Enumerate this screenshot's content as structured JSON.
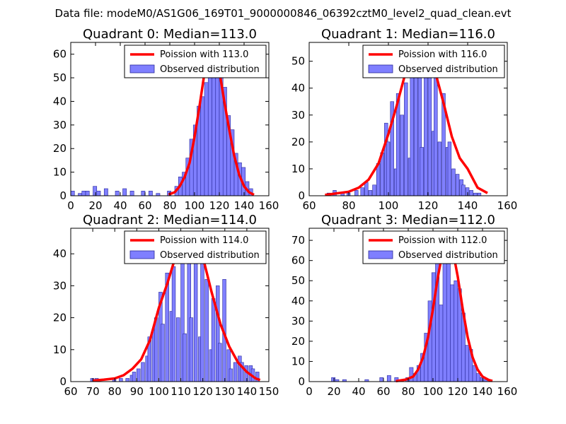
{
  "figure_title": "Data file: modeM0/AS1G06_169T01_9000000846_06392cztM0_level2_quad_clean.evt",
  "colors": {
    "hist_fill": "#7f7fff",
    "hist_edge": "#2a2a9a",
    "poisson_line": "#ff0000",
    "axes": "#000000"
  },
  "chart_data": [
    {
      "type": "bar",
      "title": "Quadrant 0: Median=113.0",
      "median": 113.0,
      "xlim": [
        0,
        160
      ],
      "ylim": [
        0,
        65
      ],
      "xticks": [
        "0",
        "20",
        "40",
        "60",
        "80",
        "100",
        "120",
        "140",
        "160"
      ],
      "yticks": [
        "0",
        "10",
        "20",
        "30",
        "40",
        "50",
        "60"
      ],
      "legend": {
        "location": "top-right",
        "entries": [
          "Poission with 113.0",
          "Observed distribution"
        ]
      },
      "histogram": {
        "bin_width": 3.0,
        "bin_starts": [
          0,
          6,
          9,
          12,
          18,
          21,
          27,
          36,
          42,
          48,
          57,
          63,
          69,
          78,
          84,
          87,
          90,
          93,
          96,
          99,
          102,
          105,
          108,
          111,
          114,
          117,
          120,
          123,
          126,
          129,
          132,
          135,
          138,
          141,
          144
        ],
        "counts": [
          2,
          1,
          2,
          2,
          4,
          2,
          3,
          2,
          3,
          2,
          2,
          2,
          1,
          2,
          4,
          8,
          10,
          16,
          24,
          30,
          38,
          42,
          48,
          60,
          55,
          58,
          50,
          46,
          34,
          28,
          18,
          14,
          12,
          6,
          3
        ]
      },
      "poisson_curve": {
        "x": [
          79,
          84,
          88,
          92,
          96,
          100,
          104,
          108,
          110,
          112,
          114,
          116,
          118,
          120,
          124,
          128,
          132,
          136,
          140,
          144,
          148
        ],
        "y": [
          0.5,
          1.5,
          4,
          8,
          14,
          25,
          38,
          52,
          57,
          61,
          62,
          61,
          58,
          53,
          40,
          28,
          17,
          9,
          4,
          1.5,
          0.4
        ]
      }
    },
    {
      "type": "bar",
      "title": "Quadrant 1: Median=116.0",
      "median": 116.0,
      "xlim": [
        60,
        160
      ],
      "ylim": [
        0,
        57
      ],
      "xticks": [
        "60",
        "80",
        "100",
        "120",
        "140",
        "160"
      ],
      "yticks": [
        "0",
        "10",
        "20",
        "30",
        "40",
        "50"
      ],
      "legend": {
        "location": "top-right",
        "entries": [
          "Poission with 116.0",
          "Observed distribution"
        ]
      },
      "histogram": {
        "bin_width": 1.72,
        "bin_starts": [
          69,
          72,
          76,
          79,
          83,
          86,
          88,
          90,
          92,
          94,
          96,
          98,
          99,
          101,
          103,
          104,
          106,
          108,
          110,
          111,
          113,
          115,
          116,
          118,
          120,
          122,
          123,
          125,
          127,
          129,
          130,
          132,
          134,
          136,
          137,
          139,
          141,
          143,
          145
        ],
        "counts": [
          1,
          2,
          1,
          1,
          2,
          3,
          5,
          2,
          4,
          12,
          16,
          27,
          20,
          35,
          10,
          38,
          30,
          42,
          14,
          46,
          48,
          55,
          18,
          50,
          46,
          24,
          44,
          20,
          38,
          18,
          20,
          10,
          8,
          6,
          4,
          3,
          2,
          1,
          1
        ]
      },
      "poisson_curve": {
        "x": [
          68,
          75,
          80,
          85,
          90,
          95,
          100,
          104,
          108,
          112,
          116,
          120,
          124,
          128,
          132,
          136,
          140,
          145,
          150
        ],
        "y": [
          0.3,
          1,
          1.5,
          3,
          6,
          12,
          23,
          33,
          44,
          52,
          55,
          52,
          45,
          34,
          22,
          14,
          10,
          3,
          1
        ]
      }
    },
    {
      "type": "bar",
      "title": "Quadrant 2: Median=114.0",
      "median": 114.0,
      "xlim": [
        60,
        150
      ],
      "ylim": [
        0,
        48
      ],
      "xticks": [
        "60",
        "70",
        "80",
        "90",
        "100",
        "110",
        "120",
        "130",
        "140",
        "150"
      ],
      "yticks": [
        "0",
        "10",
        "20",
        "30",
        "40"
      ],
      "legend": {
        "location": "top-right",
        "entries": [
          "Poission with 114.0",
          "Observed distribution"
        ]
      },
      "histogram": {
        "bin_width": 1.55,
        "bin_starts": [
          69,
          71,
          79,
          82,
          85,
          87,
          88,
          90,
          92,
          94,
          95,
          97,
          98,
          100,
          101,
          103,
          105,
          106,
          108,
          110,
          111,
          113,
          114,
          116,
          118,
          119,
          121,
          123,
          124,
          126,
          127,
          129,
          131,
          132,
          134,
          136,
          137,
          139,
          141,
          142,
          144
        ],
        "counts": [
          1,
          1,
          1,
          1,
          1,
          2,
          3,
          4,
          6,
          8,
          14,
          16,
          20,
          28,
          18,
          34,
          22,
          36,
          20,
          38,
          15,
          42,
          20,
          44,
          14,
          42,
          32,
          10,
          26,
          30,
          12,
          32,
          10,
          4,
          6,
          8,
          6,
          5,
          5,
          4,
          3
        ]
      },
      "poisson_curve": {
        "x": [
          70,
          75,
          80,
          84,
          88,
          92,
          96,
          100,
          104,
          108,
          112,
          114,
          116,
          120,
          124,
          128,
          132,
          136,
          140,
          144,
          146
        ],
        "y": [
          0.3,
          0.6,
          1,
          2,
          4,
          7,
          13,
          23,
          31,
          40,
          45,
          46,
          45,
          39,
          28,
          18,
          11,
          6,
          3,
          1,
          0.5
        ]
      }
    },
    {
      "type": "bar",
      "title": "Quadrant 3: Median=112.0",
      "median": 112.0,
      "xlim": [
        0,
        160
      ],
      "ylim": [
        0,
        76
      ],
      "xticks": [
        "0",
        "20",
        "40",
        "60",
        "80",
        "100",
        "120",
        "140",
        "160"
      ],
      "yticks": [
        "0",
        "10",
        "20",
        "30",
        "40",
        "50",
        "60",
        "70"
      ],
      "legend": {
        "location": "top-right",
        "entries": [
          "Poission with 112.0",
          "Observed distribution"
        ]
      },
      "histogram": {
        "bin_width": 3.0,
        "bin_starts": [
          18,
          21,
          27,
          45,
          57,
          63,
          69,
          78,
          81,
          84,
          87,
          90,
          93,
          96,
          99,
          102,
          105,
          108,
          111,
          114,
          117,
          120,
          123,
          126,
          129,
          132,
          135,
          138,
          141
        ],
        "counts": [
          2,
          1,
          1,
          1,
          2,
          3,
          2,
          2,
          7,
          4,
          8,
          14,
          24,
          40,
          54,
          60,
          38,
          62,
          70,
          48,
          50,
          46,
          34,
          18,
          16,
          8,
          4,
          2,
          1
        ]
      },
      "poisson_curve": {
        "x": [
          70,
          78,
          84,
          88,
          92,
          96,
          100,
          104,
          108,
          110,
          112,
          114,
          116,
          120,
          124,
          128,
          132,
          136,
          140,
          145,
          148
        ],
        "y": [
          0.2,
          1,
          2.5,
          6,
          12,
          22,
          36,
          52,
          65,
          70,
          72,
          70,
          65,
          52,
          36,
          22,
          12,
          6,
          2.5,
          0.8,
          0.3
        ]
      }
    }
  ]
}
